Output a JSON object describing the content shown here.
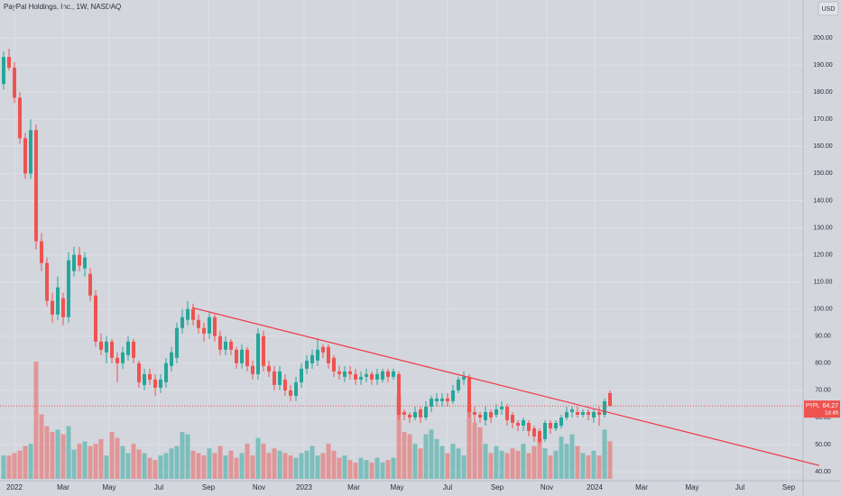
{
  "chart_data": {
    "type": "candlestick",
    "title": "PayPal Holdings, Inc., 1W, NASDAQ",
    "currency": "USD",
    "open": [
      183,
      193,
      189,
      178,
      163,
      150,
      166,
      125,
      117,
      103,
      98,
      104,
      97,
      114,
      120,
      115,
      113,
      105,
      88,
      84,
      88,
      82,
      80,
      83,
      88,
      80,
      72,
      76,
      74,
      71,
      73,
      79,
      82,
      93,
      96,
      100,
      96,
      93,
      91,
      97,
      90,
      85,
      88,
      85,
      80,
      85,
      79,
      76,
      90,
      79,
      77,
      72,
      74,
      70,
      68,
      73,
      78,
      80,
      81,
      86,
      86,
      82,
      77,
      75,
      77,
      76,
      74,
      75,
      76,
      74,
      74,
      77,
      75,
      76,
      62,
      61,
      60,
      63,
      60,
      64,
      66,
      66,
      67,
      66,
      70,
      74,
      75,
      62,
      61,
      59,
      62,
      61,
      63,
      64,
      61,
      58,
      57,
      58,
      56,
      55,
      52,
      58,
      56,
      57,
      60,
      62,
      62,
      61,
      62,
      60,
      62,
      61,
      69
    ],
    "high": [
      195,
      196,
      191,
      180,
      165,
      170,
      168,
      128,
      119,
      106,
      112,
      106,
      121,
      123,
      123,
      121,
      115,
      107,
      91,
      90,
      89,
      84,
      86,
      90,
      89,
      81,
      78,
      78,
      76,
      76,
      82,
      86,
      95,
      100,
      103,
      102,
      98,
      95,
      99,
      98,
      92,
      90,
      89,
      86,
      87,
      86,
      81,
      93,
      92,
      81,
      79,
      79,
      76,
      72,
      75,
      80,
      83,
      85,
      89,
      87,
      87,
      83,
      79,
      79,
      79,
      78,
      77,
      78,
      77,
      78,
      78,
      78,
      78,
      77,
      63,
      62,
      64,
      64,
      66,
      68,
      69,
      69,
      69,
      72,
      75,
      77,
      76,
      64,
      62,
      64,
      63,
      65,
      66,
      65,
      62,
      59,
      60,
      59,
      57,
      56,
      59,
      59,
      59,
      61,
      64,
      64,
      64,
      63,
      63,
      63,
      64,
      67,
      70
    ],
    "low": [
      181,
      188,
      176,
      161,
      148,
      148,
      122,
      114,
      101,
      95,
      96,
      94,
      95,
      112,
      114,
      112,
      103,
      86,
      83,
      80,
      80,
      73,
      78,
      81,
      80,
      71,
      70,
      72,
      68,
      69,
      71,
      77,
      80,
      91,
      94,
      94,
      91,
      88,
      89,
      88,
      83,
      83,
      83,
      78,
      78,
      77,
      74,
      74,
      77,
      75,
      70,
      70,
      68,
      66,
      66,
      71,
      76,
      78,
      79,
      82,
      78,
      75,
      74,
      73,
      74,
      72,
      72,
      73,
      72,
      72,
      73,
      73,
      74,
      59,
      59,
      58,
      59,
      58,
      59,
      62,
      64,
      64,
      64,
      65,
      69,
      72,
      60,
      58,
      58,
      57,
      58,
      60,
      61,
      57,
      56,
      55,
      55,
      53,
      51,
      50,
      51,
      54,
      55,
      56,
      59,
      60,
      60,
      60,
      59,
      58,
      57,
      60,
      64
    ],
    "close": [
      193,
      189,
      178,
      163,
      150,
      166,
      125,
      117,
      103,
      98,
      108,
      97,
      118,
      120,
      116,
      119,
      105,
      88,
      85,
      88,
      82,
      80,
      84,
      88,
      82,
      73,
      76,
      74,
      71,
      74,
      80,
      84,
      93,
      97,
      100,
      96,
      93,
      91,
      97,
      90,
      85,
      88,
      85,
      80,
      85,
      79,
      76,
      91,
      79,
      77,
      72,
      77,
      70,
      68,
      73,
      78,
      81,
      83,
      85,
      84,
      80,
      77,
      76,
      77,
      76,
      74,
      75,
      76,
      74,
      76,
      77,
      75,
      77,
      61,
      61,
      60,
      62,
      60,
      64,
      67,
      67,
      67,
      66,
      70,
      74,
      75,
      62,
      61,
      60,
      62,
      60,
      63,
      64,
      59,
      58,
      57,
      59,
      55,
      53,
      51,
      58,
      56,
      58,
      60,
      62,
      63,
      61,
      62,
      61,
      62,
      61,
      66,
      64.27
    ],
    "volume": [
      20,
      20,
      22,
      24,
      28,
      30,
      100,
      55,
      45,
      40,
      42,
      38,
      45,
      25,
      30,
      32,
      28,
      30,
      34,
      20,
      40,
      35,
      28,
      22,
      30,
      25,
      22,
      18,
      16,
      20,
      22,
      26,
      28,
      40,
      38,
      24,
      22,
      20,
      26,
      22,
      28,
      20,
      24,
      18,
      22,
      30,
      20,
      35,
      30,
      22,
      26,
      24,
      22,
      20,
      18,
      22,
      24,
      28,
      20,
      22,
      30,
      24,
      18,
      20,
      16,
      14,
      18,
      16,
      14,
      18,
      14,
      16,
      18,
      72,
      40,
      38,
      30,
      26,
      38,
      42,
      34,
      28,
      22,
      30,
      26,
      20,
      60,
      48,
      44,
      30,
      22,
      28,
      24,
      22,
      26,
      24,
      30,
      22,
      28,
      34,
      26,
      20,
      24,
      36,
      30,
      38,
      28,
      22,
      20,
      24,
      20,
      42,
      32
    ],
    "up_color": "#26a69a",
    "down_color": "#ef5350",
    "ylim": [
      36.7,
      214.0
    ],
    "yticks": [
      {
        "value": 40,
        "label": "40.00"
      },
      {
        "value": 50,
        "label": "50.00"
      },
      {
        "value": 60,
        "label": "60.00"
      },
      {
        "value": 70,
        "label": "70.00"
      },
      {
        "value": 80,
        "label": "80.00"
      },
      {
        "value": 90,
        "label": "90.00"
      },
      {
        "value": 100,
        "label": "100.00"
      },
      {
        "value": 110,
        "label": "110.00"
      },
      {
        "value": 120,
        "label": "120.00"
      },
      {
        "value": 130,
        "label": "130.00"
      },
      {
        "value": 140,
        "label": "140.00"
      },
      {
        "value": 150,
        "label": "150.00"
      },
      {
        "value": 160,
        "label": "160.00"
      },
      {
        "value": 170,
        "label": "170.00"
      },
      {
        "value": 180,
        "label": "180.00"
      },
      {
        "value": 190,
        "label": "190.00"
      },
      {
        "value": 200,
        "label": "200.00"
      }
    ],
    "xlabels": [
      "2022",
      "Mar",
      "May",
      "Jul",
      "Sep",
      "Nov",
      "2023",
      "Mar",
      "May",
      "Jul",
      "Sep",
      "Nov",
      "2024",
      "Mar",
      "May",
      "Jul",
      "Sep"
    ],
    "trendline": {
      "start": 100.5,
      "end": 42.3,
      "color": "#f23645"
    },
    "last_price": {
      "symbol": "PYPL",
      "value": 64.27,
      "countdown": "1d 4h"
    },
    "grid": true
  }
}
